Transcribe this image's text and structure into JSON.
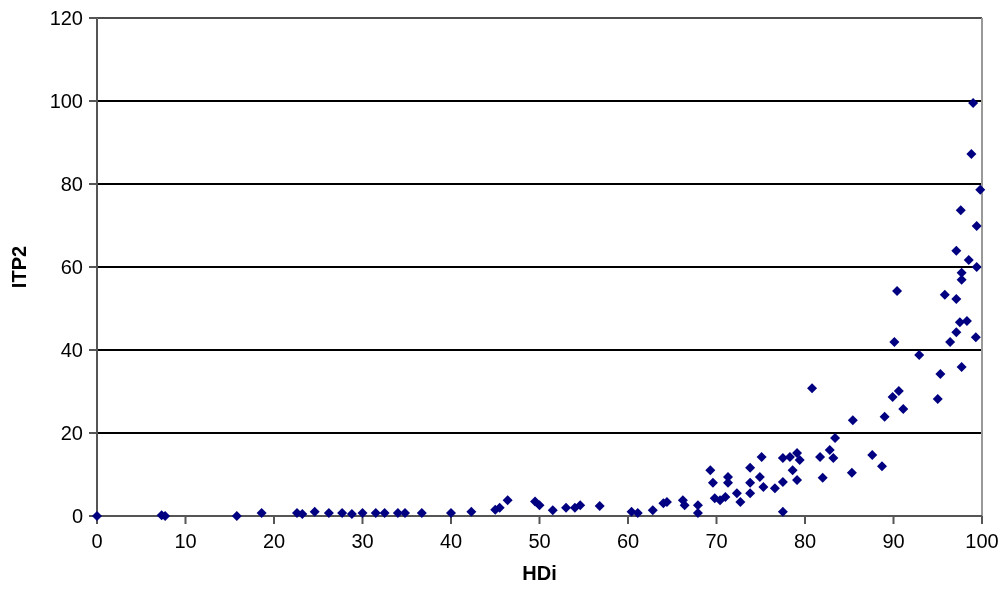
{
  "chart_data": {
    "type": "scatter",
    "xlabel": "HDi",
    "ylabel": "ITP2",
    "xlim": [
      0,
      100
    ],
    "ylim": [
      0,
      120
    ],
    "xticks": [
      0,
      10,
      20,
      30,
      40,
      50,
      60,
      70,
      80,
      90,
      100
    ],
    "yticks": [
      0,
      20,
      40,
      60,
      80,
      100,
      120
    ],
    "grid": "y",
    "marker": "diamond",
    "series": [
      {
        "color": "#000080",
        "x": [
          0,
          7.3,
          7.7,
          15.8,
          18.6,
          22.6,
          23.2,
          24.6,
          26.2,
          27.7,
          28.8,
          30,
          31.5,
          32.5,
          34,
          34.8,
          36.7,
          40,
          42.3,
          45,
          45.5,
          46.4,
          49.5,
          50,
          51.5,
          53,
          54,
          54.6,
          56.8,
          60.4,
          61.1,
          62.8,
          64,
          64.4,
          66.2,
          66.4,
          67.9,
          67.9,
          69.3,
          69.6,
          69.8,
          70.4,
          71,
          71.3,
          71.3,
          72.3,
          72.7,
          73.8,
          73.8,
          73.8,
          75.1,
          74.9,
          75.3,
          76.6,
          77.5,
          77.5,
          77.5,
          78.3,
          78.6,
          79.1,
          79.1,
          79.4,
          80.8,
          81.7,
          82,
          82.8,
          83.2,
          83.4,
          85.4,
          85.3,
          87.6,
          88.7,
          89,
          89.9,
          90.6,
          91.1,
          95,
          95.3,
          97.7,
          99,
          98.8,
          99.8,
          97.6,
          99.4,
          97.1,
          98.5,
          99.4,
          97.7,
          97.7,
          90.4,
          95.8,
          97.1,
          97.5,
          98.3,
          97.1,
          99.3,
          90.1,
          96.4,
          92.9
        ],
        "values": [
          0,
          0.2,
          0,
          0,
          0.7,
          0.7,
          0.5,
          1,
          0.7,
          0.7,
          0.5,
          0.7,
          0.7,
          0.7,
          0.7,
          0.7,
          0.7,
          0.7,
          1,
          1.5,
          2,
          3.8,
          3.5,
          2.6,
          1.4,
          2,
          2,
          2.6,
          2.4,
          1,
          0.7,
          1.4,
          3.1,
          3.4,
          3.8,
          2.6,
          2.6,
          0.7,
          11,
          8,
          4.3,
          3.8,
          4.6,
          9.4,
          8,
          5.5,
          3.4,
          11.6,
          8,
          5.5,
          14.2,
          9.4,
          7,
          6.7,
          8.2,
          1,
          14,
          14.2,
          11,
          8.7,
          15.2,
          13.5,
          30.8,
          14.2,
          9.2,
          15.9,
          14,
          18.8,
          23.1,
          10.4,
          14.7,
          12,
          23.9,
          28.7,
          30.1,
          25.8,
          28.2,
          34.2,
          35.9,
          99.5,
          87.2,
          78.6,
          73.7,
          69.9,
          63.9,
          61.7,
          60,
          58.6,
          56.9,
          54.2,
          53.3,
          52.3,
          46.7,
          47,
          44.3,
          43.1,
          41.9,
          41.9,
          38.8
        ]
      }
    ]
  }
}
